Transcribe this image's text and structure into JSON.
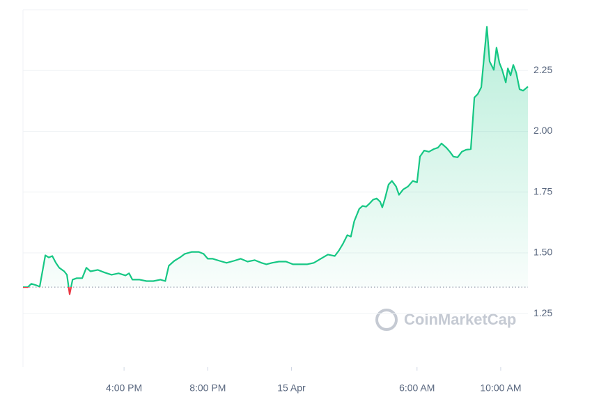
{
  "chart_data": {
    "type": "line",
    "watermark": "CoinMarketCap",
    "xlim": [
      11.17,
      35.3
    ],
    "xticks": [
      {
        "value": 16,
        "label": "4:00 PM"
      },
      {
        "value": 20,
        "label": "8:00 PM"
      },
      {
        "value": 24,
        "label": "15 Apr"
      },
      {
        "value": 30,
        "label": "6:00 AM"
      },
      {
        "value": 34,
        "label": "10:00 AM"
      }
    ],
    "ylim": [
      1.03,
      2.5
    ],
    "yticks": [
      1.25,
      {
        "value": 1.5,
        "label": "1.50"
      },
      1.75,
      {
        "value": 2.0,
        "label": "2.00"
      },
      2.25
    ],
    "grid": true,
    "reference_value": 1.359,
    "color_up": "#16c784",
    "color_down": "#ea3943",
    "x": [
      11.17,
      11.4,
      11.57,
      11.8,
      11.97,
      12.24,
      12.4,
      12.57,
      12.74,
      12.9,
      13.14,
      13.27,
      13.4,
      13.54,
      13.74,
      14.0,
      14.2,
      14.4,
      14.74,
      15.07,
      15.4,
      15.74,
      16.07,
      16.24,
      16.4,
      16.74,
      17.07,
      17.4,
      17.74,
      17.97,
      18.14,
      18.4,
      18.67,
      18.9,
      19.24,
      19.57,
      19.8,
      20.0,
      20.24,
      20.57,
      20.9,
      21.24,
      21.57,
      21.9,
      22.24,
      22.57,
      22.8,
      23.07,
      23.4,
      23.74,
      24.07,
      24.4,
      24.74,
      25.07,
      25.4,
      25.74,
      26.07,
      26.27,
      26.47,
      26.67,
      26.84,
      27.0,
      27.24,
      27.4,
      27.57,
      27.74,
      27.9,
      28.07,
      28.24,
      28.34,
      28.47,
      28.64,
      28.8,
      29.0,
      29.14,
      29.34,
      29.57,
      29.8,
      30.0,
      30.14,
      30.34,
      30.57,
      30.8,
      31.0,
      31.17,
      31.4,
      31.57,
      31.74,
      31.94,
      32.14,
      32.34,
      32.57,
      32.74,
      32.9,
      33.07,
      33.24,
      33.34,
      33.47,
      33.67,
      33.8,
      33.94,
      34.07,
      34.24,
      34.34,
      34.47,
      34.6,
      34.74,
      34.9,
      35.07,
      35.3
    ],
    "values": [
      1.359,
      1.359,
      1.373,
      1.367,
      1.361,
      1.49,
      1.481,
      1.487,
      1.459,
      1.439,
      1.424,
      1.41,
      1.33,
      1.39,
      1.396,
      1.396,
      1.439,
      1.424,
      1.43,
      1.419,
      1.41,
      1.416,
      1.407,
      1.416,
      1.39,
      1.39,
      1.384,
      1.384,
      1.39,
      1.384,
      1.447,
      1.467,
      1.481,
      1.496,
      1.504,
      1.504,
      1.496,
      1.476,
      1.476,
      1.467,
      1.459,
      1.467,
      1.476,
      1.464,
      1.47,
      1.459,
      1.453,
      1.459,
      1.464,
      1.464,
      1.453,
      1.453,
      1.453,
      1.459,
      1.476,
      1.493,
      1.487,
      1.51,
      1.539,
      1.573,
      1.567,
      1.63,
      1.681,
      1.693,
      1.69,
      1.704,
      1.719,
      1.724,
      1.71,
      1.687,
      1.724,
      1.781,
      1.796,
      1.773,
      1.739,
      1.761,
      1.773,
      1.796,
      1.79,
      1.896,
      1.921,
      1.916,
      1.927,
      1.933,
      1.95,
      1.933,
      1.916,
      1.896,
      1.893,
      1.916,
      1.924,
      1.927,
      2.139,
      2.153,
      2.181,
      2.339,
      2.43,
      2.287,
      2.253,
      2.344,
      2.281,
      2.253,
      2.201,
      2.259,
      2.23,
      2.273,
      2.241,
      2.173,
      2.167,
      2.184
    ]
  }
}
